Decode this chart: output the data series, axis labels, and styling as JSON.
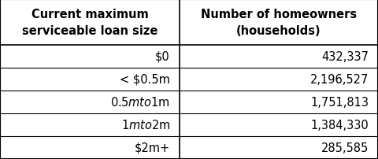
{
  "col1_header": "Current maximum\nserviceable loan size",
  "col2_header": "Number of homeowners\n(households)",
  "rows": [
    [
      "$0",
      "432,337"
    ],
    [
      "< $0.5m",
      "2,196,527"
    ],
    [
      "$0.5m to $1m",
      "1,751,813"
    ],
    [
      "$1m to $2m",
      "1,384,330"
    ],
    [
      "$2m+",
      "285,585"
    ]
  ],
  "bg_color": "#ffffff",
  "border_color": "#000000",
  "font_size_header": 10.5,
  "font_size_body": 10.5,
  "fig_width": 4.8,
  "fig_height": 2.03,
  "dpi": 100,
  "col_split": 0.475
}
